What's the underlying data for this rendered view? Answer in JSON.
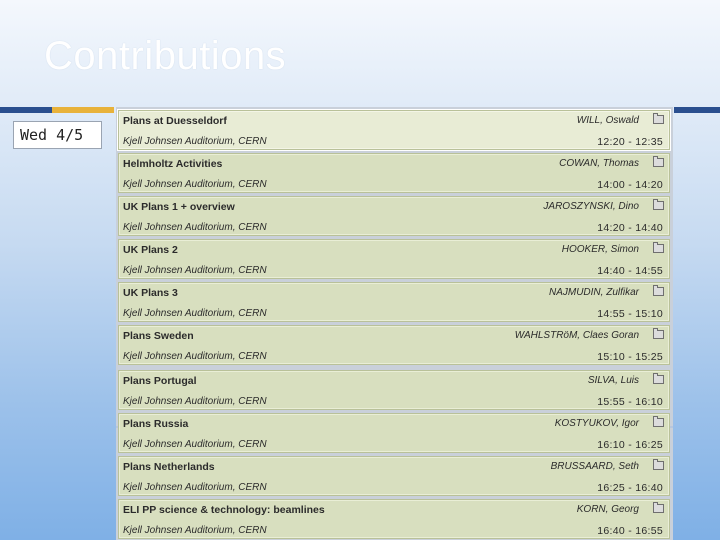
{
  "slide": {
    "title": "Contributions"
  },
  "day": {
    "label": "Wed 4/5"
  },
  "contributions": [
    {
      "title": "Plans at Duesseldorf",
      "speaker": "WILL, Oswald",
      "location": "Kjell Johnsen Auditorium, CERN",
      "time": "12:20 - 12:35"
    },
    {
      "title": "Helmholtz Activities",
      "speaker": "COWAN, Thomas",
      "location": "Kjell Johnsen Auditorium, CERN",
      "time": "14:00 - 14:20"
    },
    {
      "title": "UK Plans 1 + overview",
      "speaker": "JAROSZYNSKI, Dino",
      "location": "Kjell Johnsen Auditorium, CERN",
      "time": "14:20 - 14:40"
    },
    {
      "title": "UK Plans 2",
      "speaker": "HOOKER, Simon",
      "location": "Kjell Johnsen Auditorium, CERN",
      "time": "14:40 - 14:55"
    },
    {
      "title": "UK Plans 3",
      "speaker": "NAJMUDIN, Zulfikar",
      "location": "Kjell Johnsen Auditorium, CERN",
      "time": "14:55 - 15:10"
    },
    {
      "title": "Plans Sweden",
      "speaker": "WAHLSTRöM, Claes Goran",
      "location": "Kjell Johnsen Auditorium, CERN",
      "time": "15:10 - 15:25"
    },
    {
      "title": "Plans Portugal",
      "speaker": "SILVA, Luis",
      "location": "Kjell Johnsen Auditorium, CERN",
      "time": "15:55 - 16:10"
    },
    {
      "title": "Plans Russia",
      "speaker": "KOSTYUKOV, Igor",
      "location": "Kjell Johnsen Auditorium, CERN",
      "time": "16:10 - 16:25"
    },
    {
      "title": "Plans Netherlands",
      "speaker": "BRUSSAARD, Seth",
      "location": "Kjell Johnsen Auditorium, CERN",
      "time": "16:25 - 16:40"
    },
    {
      "title": "ELI PP science & technology: beamlines",
      "speaker": "KORN, Georg",
      "location": "Kjell Johnsen Auditorium, CERN",
      "time": "16:40 - 16:55"
    }
  ],
  "icons": {
    "material": "folder-icon"
  },
  "colors": {
    "row_bg": "#d8dfbf",
    "accent_blue": "#2a4f8f",
    "accent_gold": "#e8b23a"
  }
}
